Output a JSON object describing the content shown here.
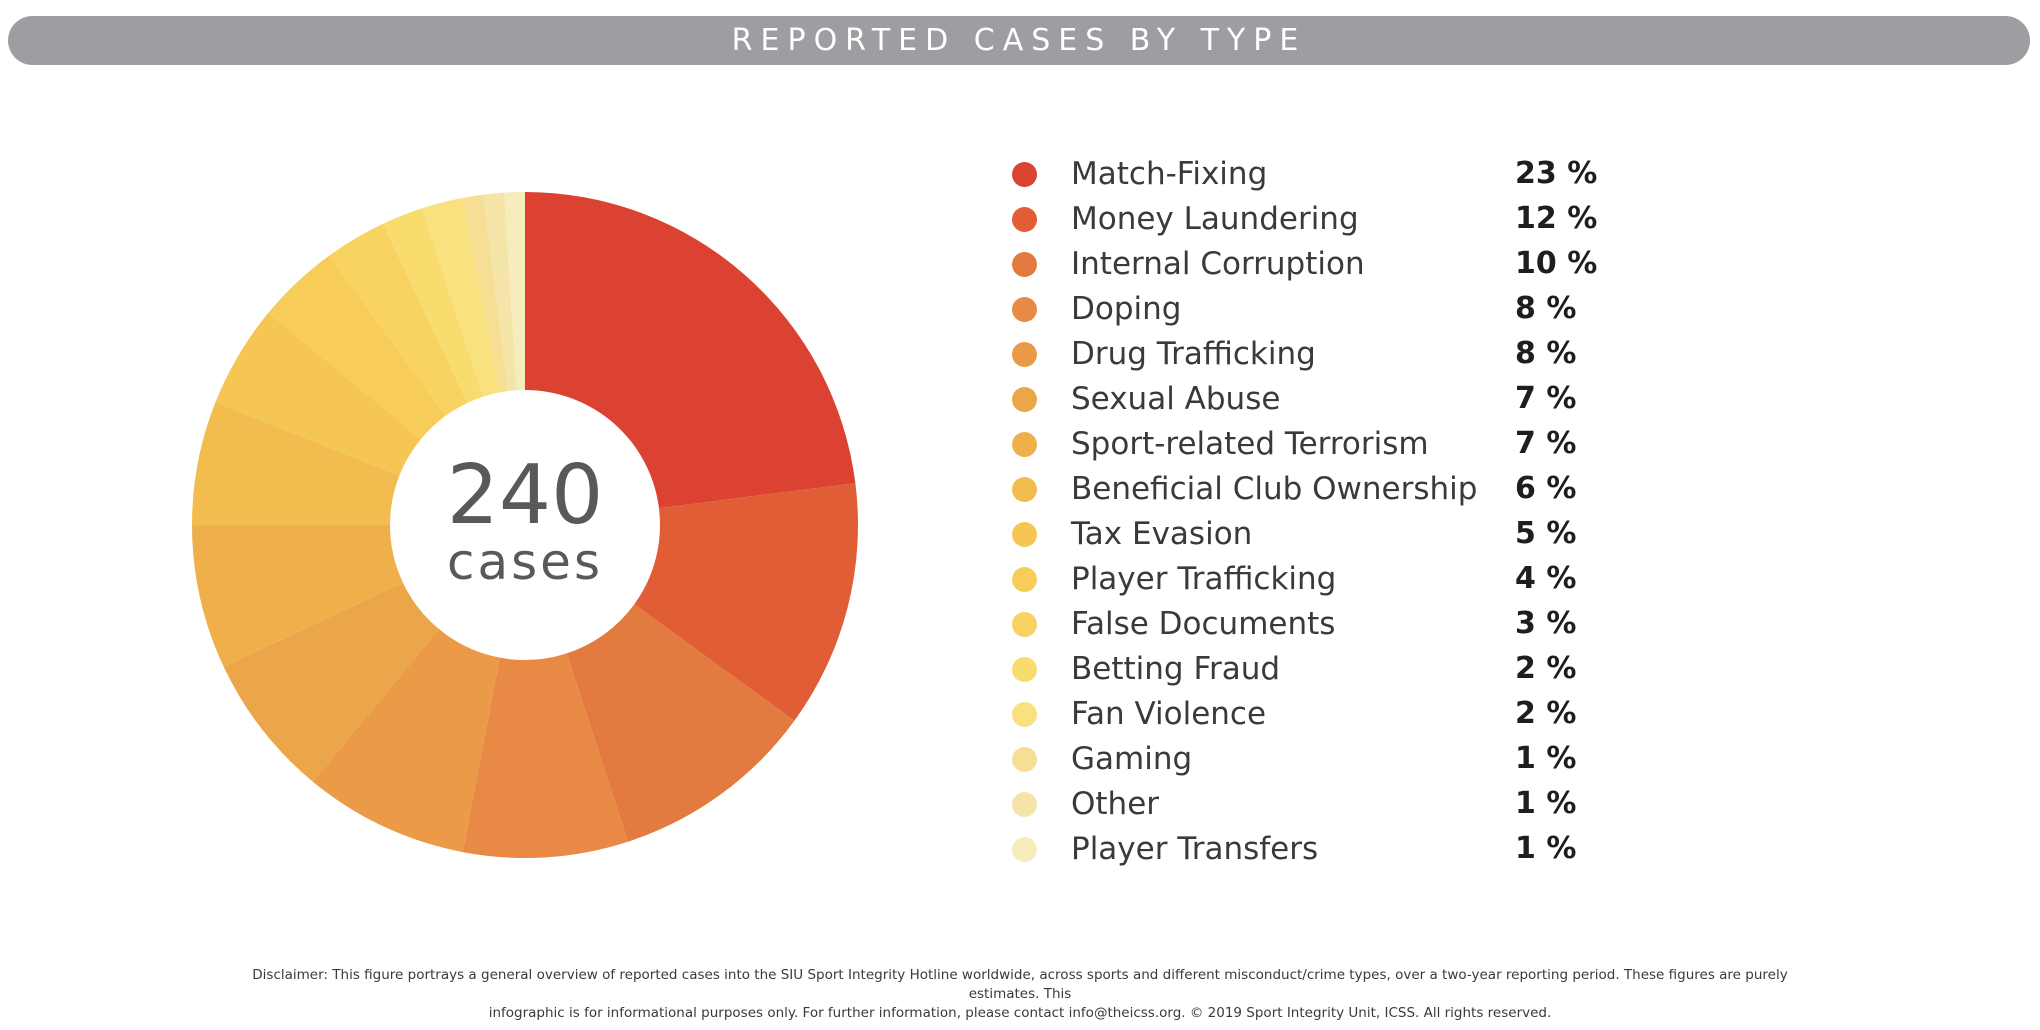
{
  "title": "REPORTED CASES BY TYPE",
  "center": {
    "number": "240",
    "unit": "cases"
  },
  "chart_data": {
    "type": "pie",
    "title": "REPORTED CASES BY TYPE",
    "total_cases": 240,
    "categories": [
      "Match-Fixing",
      "Money Laundering",
      "Internal Corruption",
      "Doping",
      "Drug Trafficking",
      "Sexual Abuse",
      "Sport-related Terrorism",
      "Beneficial Club Ownership",
      "Tax Evasion",
      "Player Trafficking",
      "False Documents",
      "Betting Fraud",
      "Fan Violence",
      "Gaming",
      "Other",
      "Player Transfers"
    ],
    "values": [
      23,
      12,
      10,
      8,
      8,
      7,
      7,
      6,
      5,
      4,
      3,
      2,
      2,
      1,
      1,
      1
    ],
    "value_labels": [
      "23 %",
      "12 %",
      "10 %",
      "8 %",
      "8 %",
      "7 %",
      "7 %",
      "6 %",
      "5 %",
      "4 %",
      "3 %",
      "2 %",
      "2 %",
      "1 %",
      "1 %",
      "1 %"
    ],
    "colors": [
      "#db4232",
      "#e05d35",
      "#e37a40",
      "#e88945",
      "#eb9a48",
      "#eca64a",
      "#efb04c",
      "#f2bc4e",
      "#f5c654",
      "#f7cc58",
      "#f8d362",
      "#f9dc6e",
      "#f9e17f",
      "#f6df94",
      "#f5e4a7",
      "#f6ecbc"
    ],
    "legend_position": "right"
  },
  "disclaimer": [
    "Disclaimer: This figure portrays a general overview of reported cases into the SIU Sport Integrity Hotline worldwide, across sports and different misconduct/crime types, over a two-year reporting period. These figures are purely estimates. This",
    "infographic is for informational purposes only. For further information, please contact info@theicss.org. © 2019 Sport Integrity Unit, ICSS. All rights reserved."
  ]
}
